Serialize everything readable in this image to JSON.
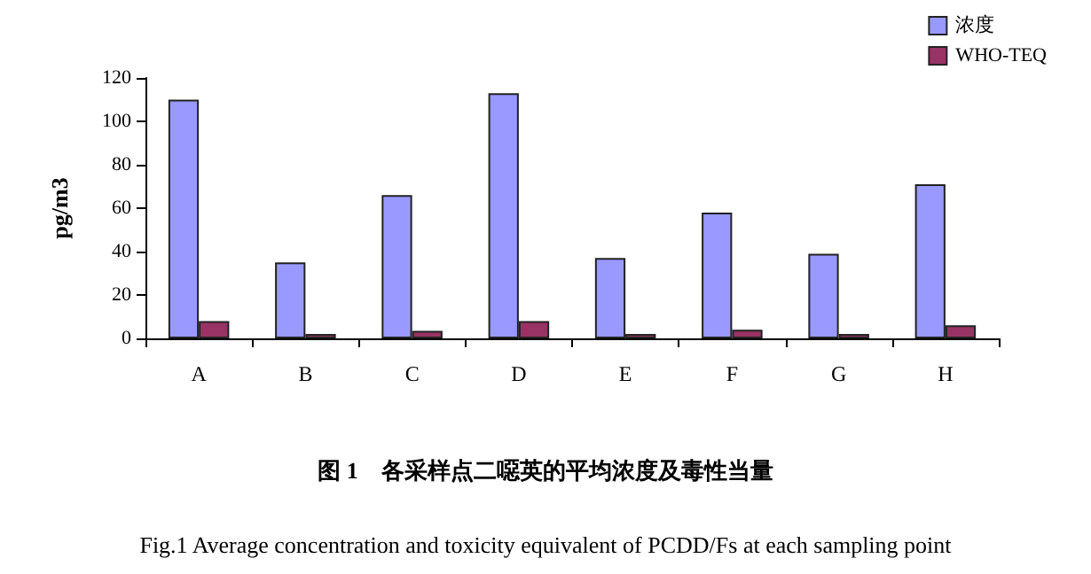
{
  "chart_data": {
    "type": "bar",
    "title": "图 1　各采样点二噁英的平均浓度及毒性当量",
    "subtitle": "Fig.1 Average concentration and toxicity equivalent of PCDD/Fs at each sampling point",
    "ylabel": "pg/m3",
    "categories": [
      "A",
      "B",
      "C",
      "D",
      "E",
      "F",
      "G",
      "H"
    ],
    "series": [
      {
        "name": "浓度",
        "color": "#9999ff",
        "values": [
          110,
          35,
          66,
          113,
          37,
          58,
          39,
          71
        ]
      },
      {
        "name": "WHO-TEQ",
        "color": "#993366",
        "values": [
          8,
          2,
          3.5,
          8,
          2,
          4,
          2,
          6
        ]
      }
    ],
    "ylim": [
      0,
      120
    ],
    "yticks": [
      0,
      20,
      40,
      60,
      80,
      100,
      120
    ],
    "grid": false,
    "legend": "top right"
  }
}
